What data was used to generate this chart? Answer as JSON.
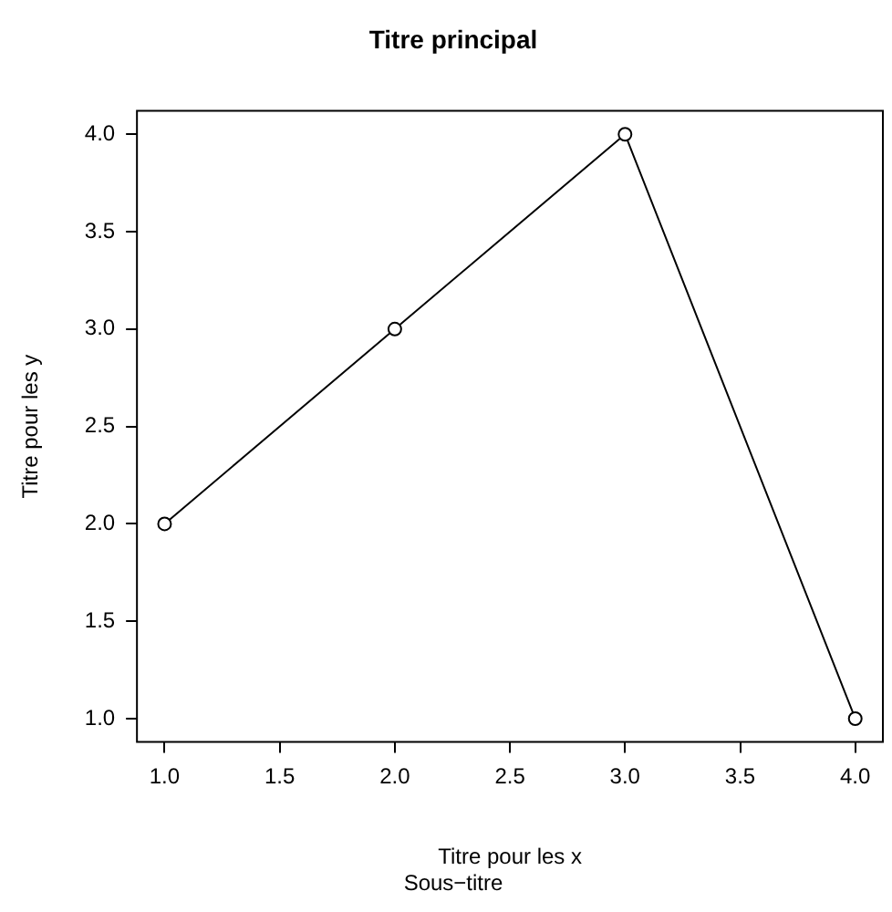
{
  "chart_data": {
    "type": "line",
    "title": "Titre principal",
    "subtitle": "Sous−titre",
    "xlabel": "Titre pour les x",
    "ylabel": "Titre pour les y",
    "x": [
      1,
      2,
      3,
      4
    ],
    "series": [
      {
        "color": "#000000",
        "values": [
          2,
          3,
          4,
          1
        ]
      }
    ],
    "xlim": [
      0.88,
      4.12
    ],
    "ylim": [
      0.88,
      4.12
    ],
    "xticks": [
      {
        "value": 1,
        "label": "1.0"
      },
      {
        "value": 1.5,
        "label": "1.5"
      },
      {
        "value": 2,
        "label": "2.0"
      },
      {
        "value": 2.5,
        "label": "2.5"
      },
      {
        "value": 3,
        "label": "3.0"
      },
      {
        "value": 3.5,
        "label": "3.5"
      },
      {
        "value": 4,
        "label": "4.0"
      }
    ],
    "yticks": [
      {
        "value": 1,
        "label": "1.0"
      },
      {
        "value": 1.5,
        "label": "1.5"
      },
      {
        "value": 2,
        "label": "2.0"
      },
      {
        "value": 2.5,
        "label": "2.5"
      },
      {
        "value": 3,
        "label": "3.0"
      },
      {
        "value": 3.5,
        "label": "3.5"
      },
      {
        "value": 4,
        "label": "4.0"
      }
    ],
    "marker": "circle",
    "line_style": "solid",
    "grid": false,
    "legend": false
  }
}
